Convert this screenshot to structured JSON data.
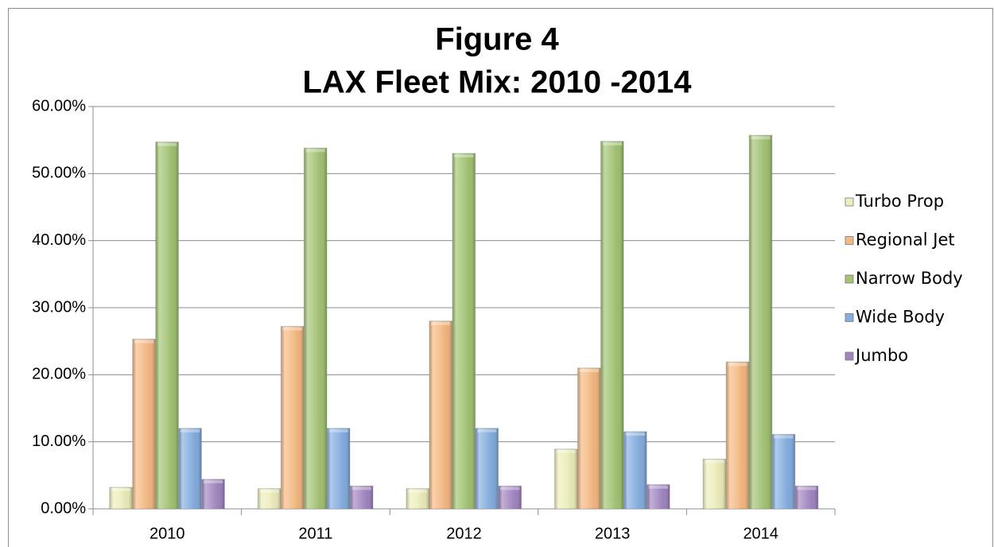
{
  "chart_data": {
    "type": "bar",
    "title": [
      "Figure 4",
      "LAX Fleet Mix: 2010 -2014"
    ],
    "categories": [
      "2010",
      "2011",
      "2012",
      "2013",
      "2014"
    ],
    "series": [
      {
        "name": "Turbo Prop",
        "color": "#eeeebb",
        "values": [
          3.2,
          3.0,
          3.0,
          8.9,
          7.4
        ]
      },
      {
        "name": "Regional Jet",
        "color": "#f5b982",
        "values": [
          25.3,
          27.2,
          28.0,
          21.0,
          21.9
        ]
      },
      {
        "name": "Narrow Body",
        "color": "#a3c473",
        "values": [
          54.7,
          53.8,
          53.0,
          54.8,
          55.7
        ]
      },
      {
        "name": "Wide Body",
        "color": "#85aee0",
        "values": [
          12.0,
          12.0,
          12.0,
          11.5,
          11.1
        ]
      },
      {
        "name": "Jumbo",
        "color": "#a286c2",
        "values": [
          4.4,
          3.4,
          3.4,
          3.6,
          3.4
        ]
      }
    ],
    "ylim": [
      0,
      60
    ],
    "yticks": [
      {
        "value": 0,
        "label": "0.00%"
      },
      {
        "value": 10,
        "label": "10.00%"
      },
      {
        "value": 20,
        "label": "20.00%"
      },
      {
        "value": 30,
        "label": "30.00%"
      },
      {
        "value": 40,
        "label": "40.00%"
      },
      {
        "value": 50,
        "label": "50.00%"
      },
      {
        "value": 60,
        "label": "60.00%"
      }
    ],
    "grid": true,
    "legend": "right"
  }
}
